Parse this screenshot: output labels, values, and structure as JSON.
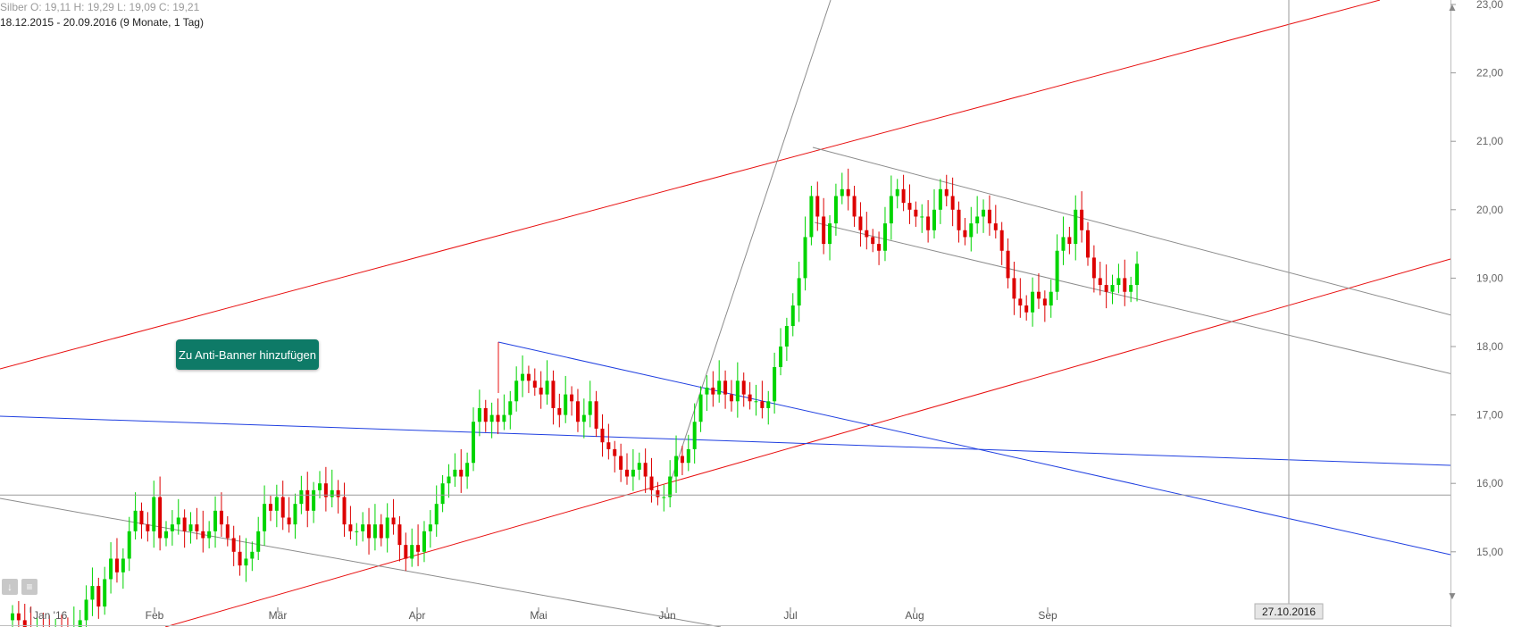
{
  "header": {
    "ohlc": "Silber  O: 19,11  H: 19,29  L: 19,09  C: 19,21",
    "range": "18.12.2015 - 20.09.2016 (9 Monate, 1 Tag)"
  },
  "banner_button": "Zu Anti-Banner hinzufügen",
  "chart_data": {
    "type": "candlestick",
    "y_ticks": [
      "23,00",
      "22,00",
      "21,00",
      "20,00",
      "19,00",
      "18,00",
      "17,00",
      "16,00",
      "15,00"
    ],
    "y_tick_values": [
      23,
      22,
      21,
      20,
      19,
      18,
      17,
      16,
      15
    ],
    "x_ticks": [
      "Jan '16",
      "Feb",
      "Mär",
      "Apr",
      "Mai",
      "Jun",
      "Jul",
      "Aug",
      "Sep"
    ],
    "price_labels": {
      "last": "19,21",
      "crosshair": "15,83"
    },
    "date_label": "27.10.2016",
    "colors": {
      "up": "#00d400",
      "down": "#dd0000",
      "blue_trend": "#1f3fe0",
      "red_trend": "#e81010",
      "grey_trend": "#8c8c8c"
    },
    "series_close": [
      14.1,
      14.0,
      13.9,
      13.8,
      13.9,
      13.8,
      13.7,
      13.9,
      13.8,
      13.7,
      13.9,
      14.0,
      14.3,
      14.5,
      14.2,
      14.6,
      14.9,
      14.7,
      14.9,
      15.3,
      15.6,
      15.4,
      15.3,
      15.8,
      15.2,
      15.3,
      15.4,
      15.5,
      15.3,
      15.4,
      15.3,
      15.2,
      15.3,
      15.6,
      15.4,
      15.2,
      15.0,
      14.8,
      14.9,
      15.0,
      15.3,
      15.7,
      15.6,
      15.8,
      15.5,
      15.4,
      15.7,
      15.9,
      15.6,
      15.9,
      16.0,
      15.8,
      15.9,
      15.8,
      15.4,
      15.3,
      15.3,
      15.4,
      15.2,
      15.4,
      15.2,
      15.5,
      15.4,
      15.1,
      14.9,
      15.1,
      15.0,
      15.3,
      15.4,
      15.7,
      16.0,
      16.1,
      16.2,
      16.1,
      16.3,
      16.9,
      17.1,
      16.9,
      17.0,
      16.9,
      17.0,
      17.2,
      17.5,
      17.6,
      17.5,
      17.4,
      17.3,
      17.5,
      17.1,
      17.0,
      17.3,
      17.2,
      16.9,
      17.0,
      17.2,
      16.8,
      16.6,
      16.5,
      16.4,
      16.2,
      16.1,
      16.2,
      16.3,
      16.1,
      15.9,
      15.8,
      15.8,
      16.1,
      16.4,
      16.3,
      16.5,
      16.9,
      17.3,
      17.4,
      17.3,
      17.5,
      17.3,
      17.2,
      17.5,
      17.3,
      17.2,
      17.2,
      17.1,
      17.2,
      17.7,
      18.0,
      18.3,
      18.6,
      19.0,
      19.6,
      20.2,
      19.9,
      19.5,
      19.8,
      20.2,
      20.3,
      20.2,
      19.9,
      19.7,
      19.6,
      19.5,
      19.4,
      19.8,
      20.2,
      20.3,
      20.1,
      20.0,
      19.9,
      19.9,
      19.7,
      20.0,
      20.3,
      20.2,
      20.0,
      19.7,
      19.6,
      19.8,
      19.9,
      20.0,
      19.8,
      19.7,
      19.4,
      19.0,
      18.7,
      18.6,
      18.5,
      18.8,
      18.7,
      18.6,
      18.8,
      19.4,
      19.6,
      19.5,
      20.0,
      19.7,
      19.3,
      19.0,
      18.9,
      18.8,
      18.9,
      19.0,
      18.8,
      18.9,
      19.21
    ]
  }
}
